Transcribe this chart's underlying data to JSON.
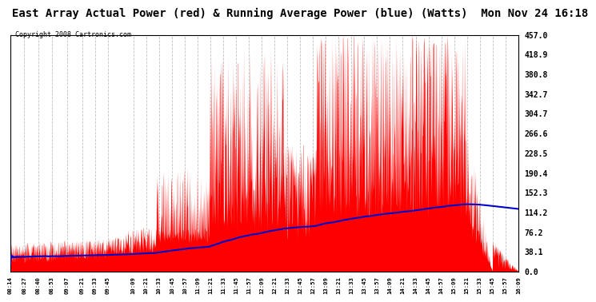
{
  "title": "East Array Actual Power (red) & Running Average Power (blue) (Watts)  Mon Nov 24 16:18",
  "copyright": "Copyright 2008 Cartronics.com",
  "yticks": [
    0.0,
    38.1,
    76.2,
    114.2,
    152.3,
    190.4,
    228.5,
    266.6,
    304.7,
    342.7,
    380.8,
    418.9,
    457.0
  ],
  "ymax": 457.0,
  "ymin": 0.0,
  "bg_color": "#FFFFFF",
  "grid_color": "#BBBBBB",
  "bar_color": "#FF0000",
  "avg_color": "#0000CC",
  "title_fontsize": 10,
  "copyright_fontsize": 6,
  "xtick_labels": [
    "08:14",
    "08:27",
    "08:40",
    "08:53",
    "09:07",
    "09:21",
    "09:33",
    "09:45",
    "10:09",
    "10:21",
    "10:33",
    "10:45",
    "10:57",
    "11:09",
    "11:21",
    "11:33",
    "11:45",
    "11:57",
    "12:09",
    "12:21",
    "12:33",
    "12:45",
    "12:57",
    "13:09",
    "13:21",
    "13:33",
    "13:45",
    "13:57",
    "14:09",
    "14:21",
    "14:33",
    "14:45",
    "14:57",
    "15:09",
    "15:21",
    "15:33",
    "15:45",
    "15:57",
    "16:09"
  ]
}
